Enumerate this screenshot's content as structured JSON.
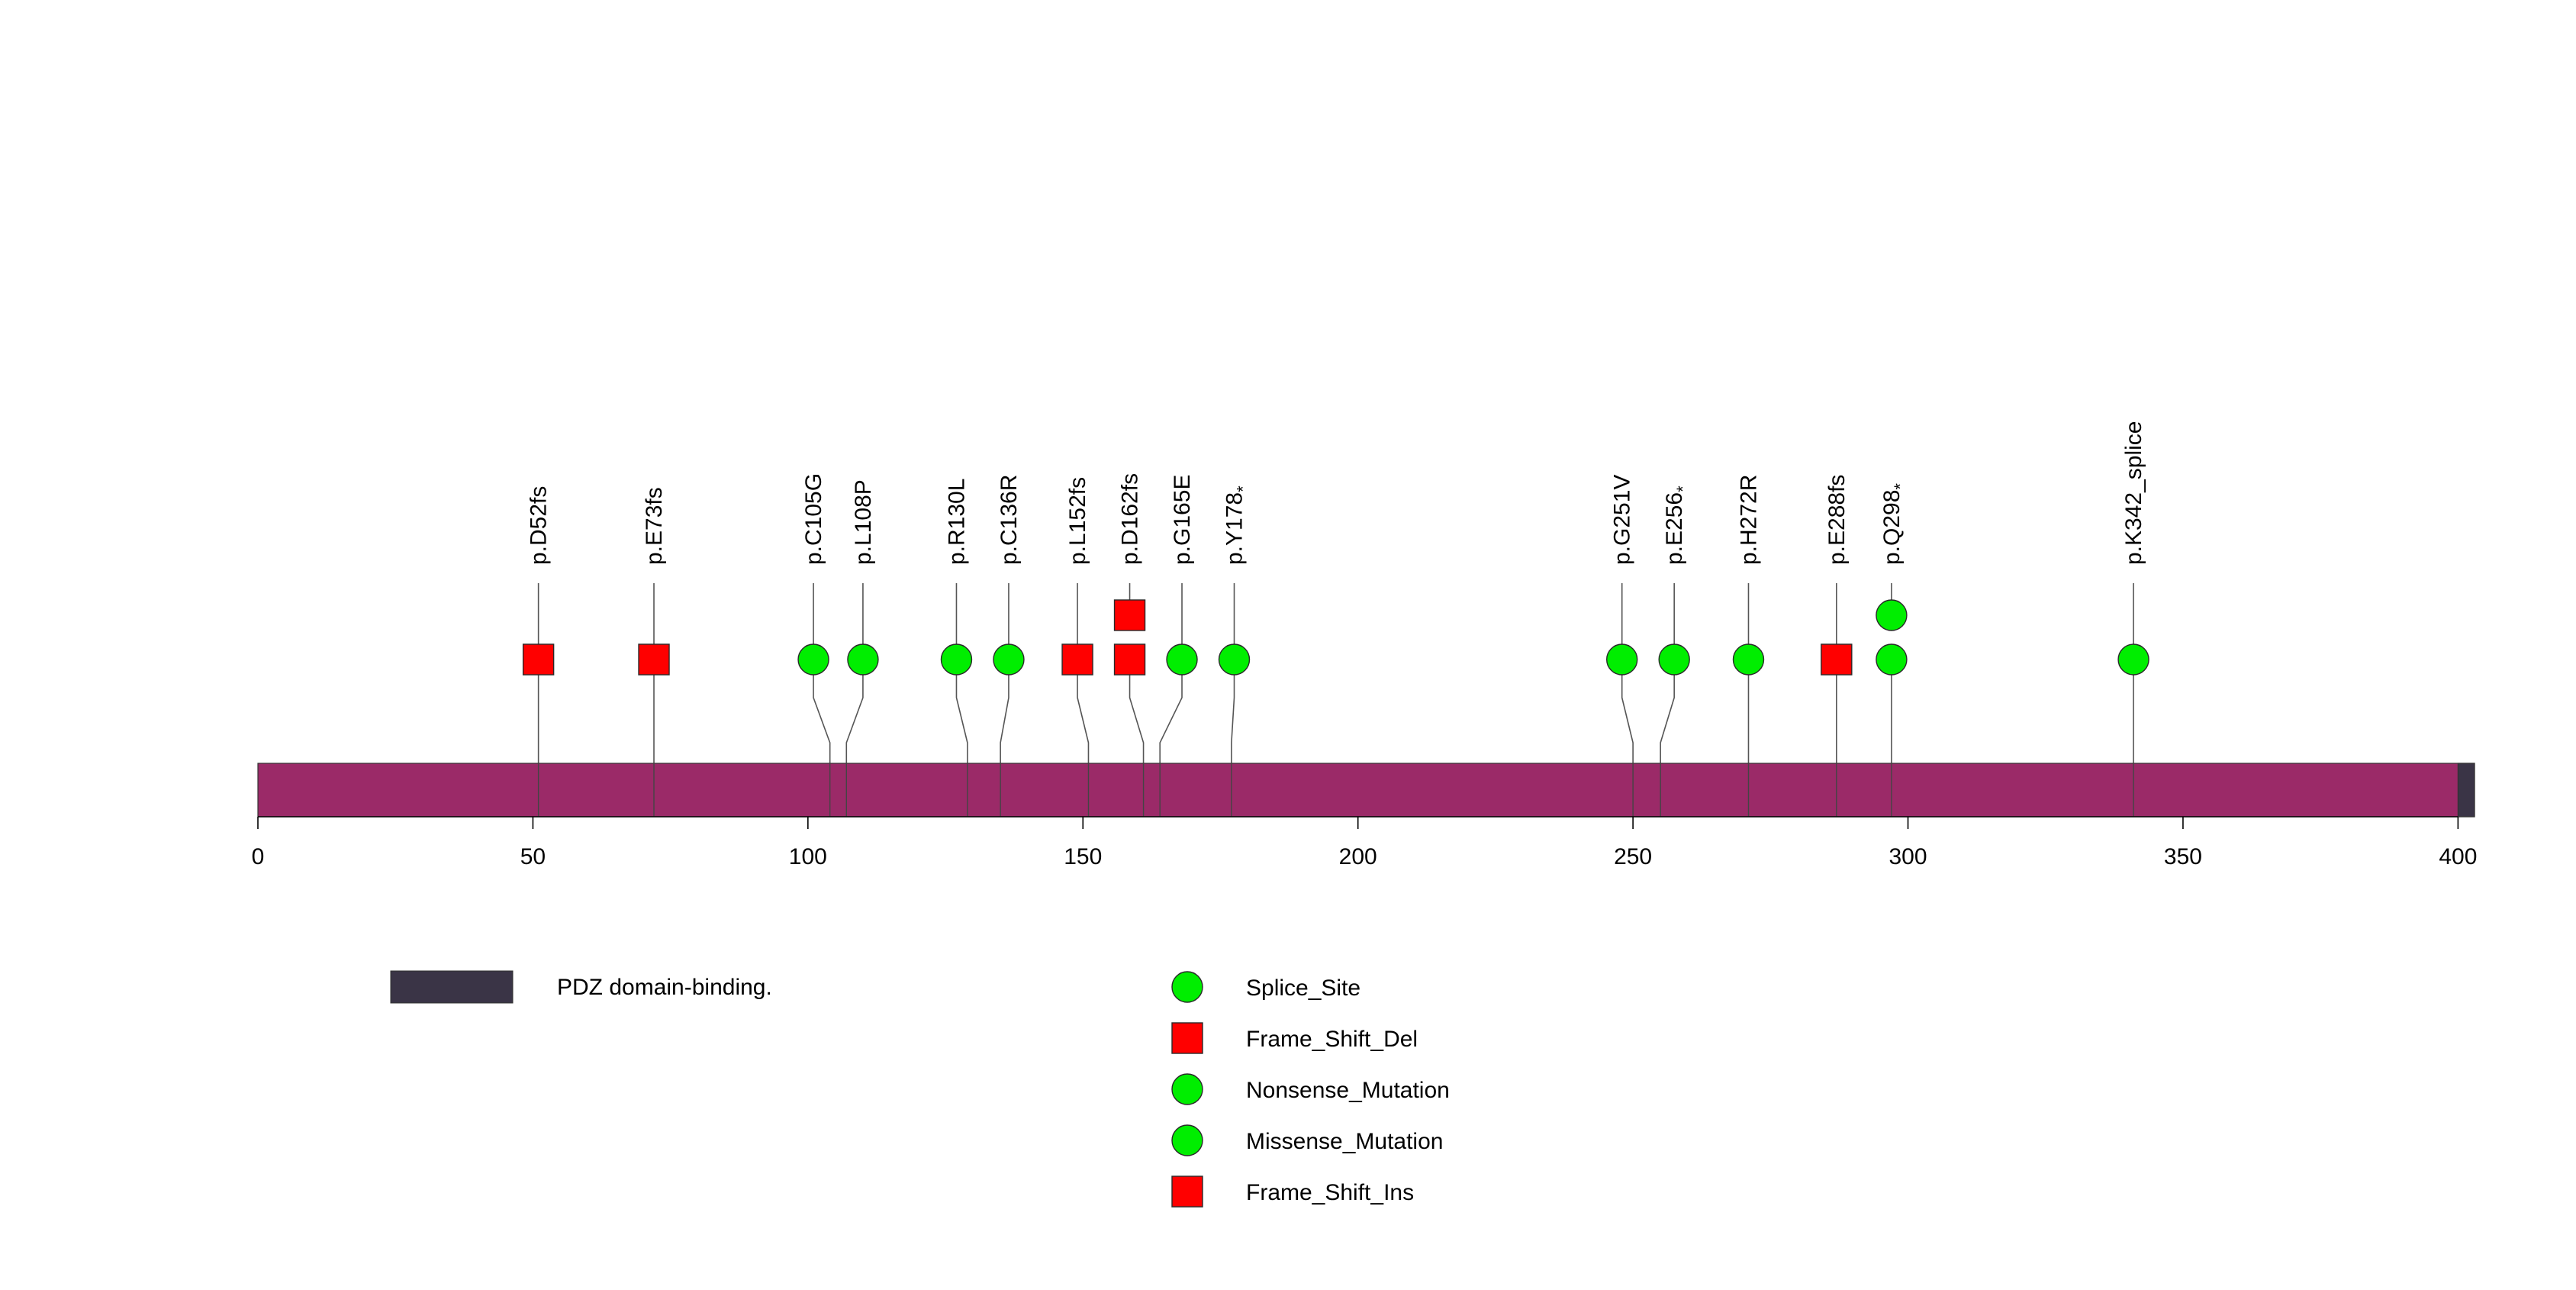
{
  "chart_data": {
    "type": "lollipop",
    "protein_length": 403,
    "xlim": [
      0,
      403
    ],
    "x_ticks": [
      0,
      50,
      100,
      150,
      200,
      250,
      300,
      350,
      400
    ],
    "colors": {
      "protein_body": "#9b2a68",
      "domain": "#3a3446",
      "circle": "#00ee00",
      "square": "#ff0000"
    },
    "domains": [
      {
        "name": "PDZ domain-binding.",
        "start": 400,
        "end": 403
      }
    ],
    "mutations": [
      {
        "label": "p.D52fs",
        "label_sub": "",
        "position": 51,
        "display_position": 51,
        "shape": "square",
        "count": 1
      },
      {
        "label": "p.E73fs",
        "label_sub": "",
        "position": 72,
        "display_position": 72,
        "shape": "square",
        "count": 1
      },
      {
        "label": "p.C105G",
        "label_sub": "",
        "position": 104,
        "display_position": 101,
        "shape": "circle",
        "count": 1
      },
      {
        "label": "p.L108P",
        "label_sub": "",
        "position": 107,
        "display_position": 110,
        "shape": "circle",
        "count": 1
      },
      {
        "label": "p.R130L",
        "label_sub": "",
        "position": 129,
        "display_position": 127,
        "shape": "circle",
        "count": 1
      },
      {
        "label": "p.C136R",
        "label_sub": "",
        "position": 135,
        "display_position": 136.5,
        "shape": "circle",
        "count": 1
      },
      {
        "label": "p.L152fs",
        "label_sub": "",
        "position": 151,
        "display_position": 149,
        "shape": "square",
        "count": 1
      },
      {
        "label": "p.D162fs",
        "label_sub": "",
        "position": 161,
        "display_position": 158.5,
        "shape": "square",
        "count": 2
      },
      {
        "label": "p.G165E",
        "label_sub": "",
        "position": 164,
        "display_position": 168,
        "shape": "circle",
        "count": 1
      },
      {
        "label": "p.Y178",
        "label_sub": "*",
        "position": 177,
        "display_position": 177.5,
        "shape": "circle",
        "count": 1
      },
      {
        "label": "p.G251V",
        "label_sub": "",
        "position": 250,
        "display_position": 248,
        "shape": "circle",
        "count": 1
      },
      {
        "label": "p.E256",
        "label_sub": "*",
        "position": 255,
        "display_position": 257.5,
        "shape": "circle",
        "count": 1
      },
      {
        "label": "p.H272R",
        "label_sub": "",
        "position": 271,
        "display_position": 271,
        "shape": "circle",
        "count": 1
      },
      {
        "label": "p.E288fs",
        "label_sub": "",
        "position": 287,
        "display_position": 287,
        "shape": "square",
        "count": 1
      },
      {
        "label": "p.Q298",
        "label_sub": "*",
        "position": 297,
        "display_position": 297,
        "shape": "circle",
        "count": 2
      },
      {
        "label": "p.K342_splice",
        "label_sub": "",
        "position": 341,
        "display_position": 341,
        "shape": "circle",
        "count": 1
      }
    ],
    "legend": {
      "domains": [
        {
          "label": "PDZ domain-binding."
        }
      ],
      "mutation_types": [
        {
          "label": "Splice_Site",
          "shape": "circle"
        },
        {
          "label": "Frame_Shift_Del",
          "shape": "square"
        },
        {
          "label": "Nonsense_Mutation",
          "shape": "circle"
        },
        {
          "label": "Missense_Mutation",
          "shape": "circle"
        },
        {
          "label": "Frame_Shift_Ins",
          "shape": "square"
        }
      ]
    }
  }
}
